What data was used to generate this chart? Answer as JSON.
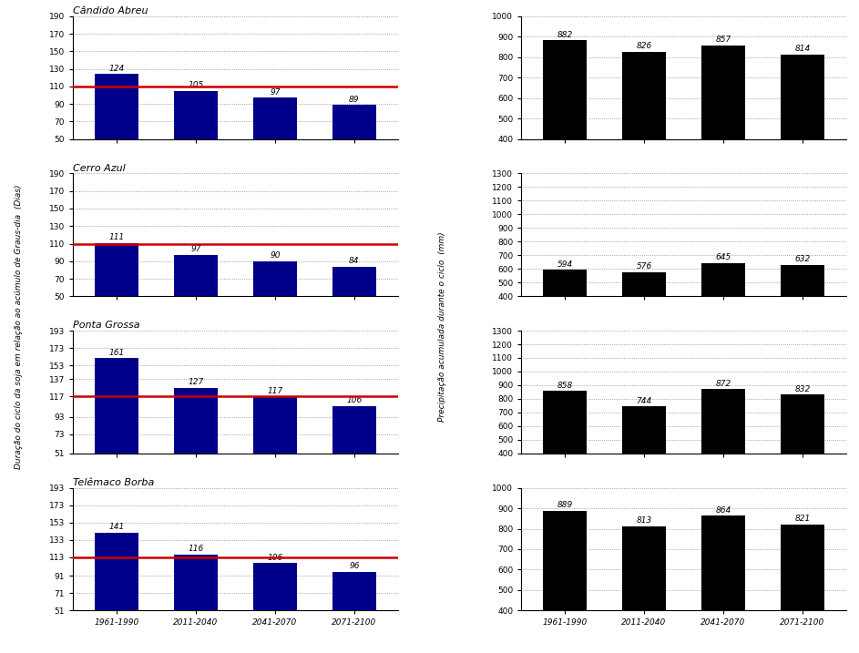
{
  "categories": [
    "1961-1990",
    "2011-2040",
    "2041-2070",
    "2071-2100"
  ],
  "left_panels": [
    {
      "title": "Cândido Abreu",
      "values": [
        124,
        105,
        97,
        89
      ],
      "red_line": 110,
      "ylim": [
        50,
        190
      ],
      "yticks": [
        50,
        70,
        90,
        110,
        130,
        150,
        170,
        190
      ]
    },
    {
      "title": "Cerro Azul",
      "values": [
        111,
        97,
        90,
        84
      ],
      "red_line": 110,
      "ylim": [
        50,
        190
      ],
      "yticks": [
        50,
        70,
        90,
        110,
        130,
        150,
        170,
        190
      ]
    },
    {
      "title": "Ponta Grossa",
      "values": [
        161,
        127,
        117,
        106
      ],
      "red_line": 117,
      "ylim": [
        51,
        193
      ],
      "yticks": [
        51,
        73,
        93,
        117,
        137,
        153,
        173,
        193
      ]
    },
    {
      "title": "Telêmaco Borba",
      "values": [
        141,
        116,
        106,
        96
      ],
      "red_line": 113,
      "ylim": [
        51,
        193
      ],
      "yticks": [
        51,
        71,
        91,
        113,
        133,
        153,
        173,
        193
      ]
    }
  ],
  "right_panels": [
    {
      "values": [
        882,
        826,
        857,
        814
      ],
      "ylim": [
        400,
        1000
      ],
      "yticks": [
        400,
        500,
        600,
        700,
        800,
        900,
        1000
      ]
    },
    {
      "values": [
        594,
        576,
        645,
        632
      ],
      "ylim": [
        400,
        1300
      ],
      "yticks": [
        400,
        500,
        600,
        700,
        800,
        900,
        1000,
        1100,
        1200,
        1300
      ]
    },
    {
      "values": [
        858,
        744,
        872,
        832
      ],
      "ylim": [
        400,
        1300
      ],
      "yticks": [
        400,
        500,
        600,
        700,
        800,
        900,
        1000,
        1100,
        1200,
        1300
      ]
    },
    {
      "values": [
        889,
        813,
        864,
        821
      ],
      "ylim": [
        400,
        1000
      ],
      "yticks": [
        400,
        500,
        600,
        700,
        800,
        900,
        1000
      ]
    }
  ],
  "bar_color_left": "#00008B",
  "bar_color_right": "#000000",
  "red_line_color": "#CC0000",
  "ylabel_left": "Duração do ciclo da soja em relação ao acúmulo de Graus-dia  (Dias)",
  "ylabel_right": "Precipitação acumulada durante o ciclo  (mm)",
  "label_fontsize": 6.5,
  "title_fontsize": 8,
  "bar_width": 0.55,
  "annotation_fontsize": 6.5,
  "tick_fontsize": 6.5
}
